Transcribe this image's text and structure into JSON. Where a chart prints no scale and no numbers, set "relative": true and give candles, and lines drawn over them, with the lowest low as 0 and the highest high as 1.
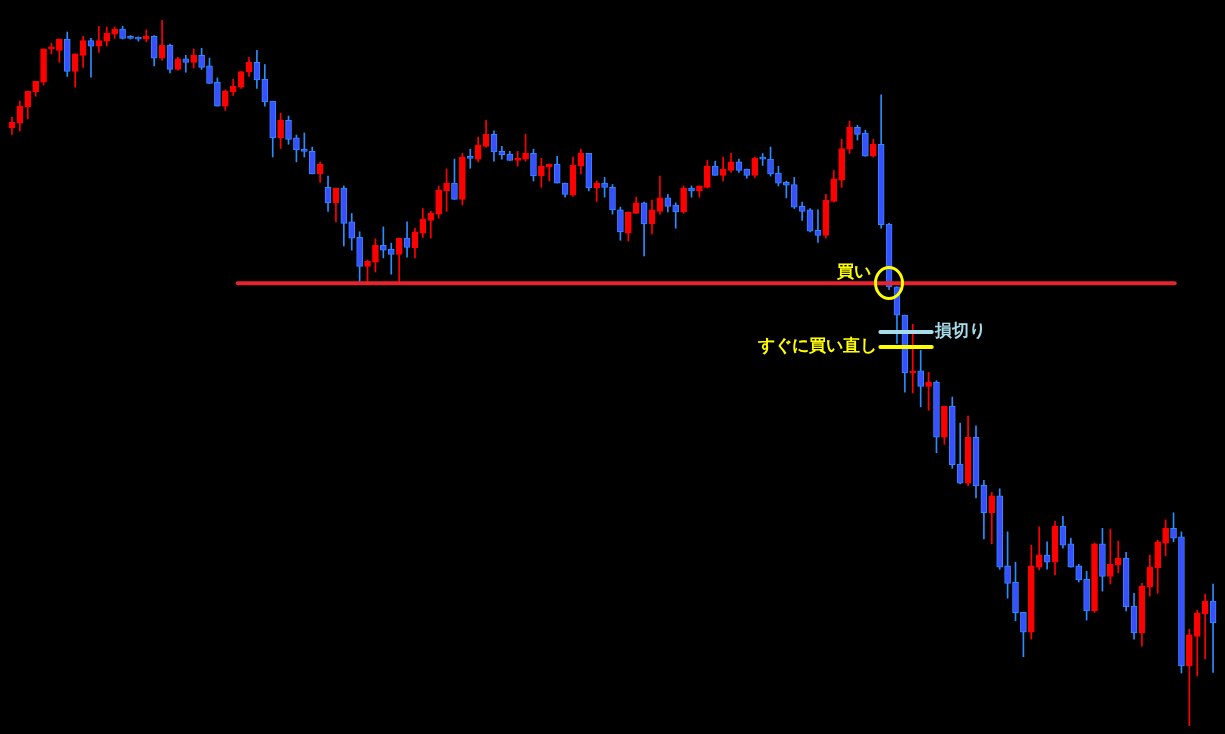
{
  "chart_data": {
    "type": "candlestick",
    "relative": true,
    "categories": [
      null,
      null,
      null,
      null,
      null,
      null,
      null,
      null,
      null,
      null,
      null,
      null,
      null,
      null,
      null,
      null,
      null,
      null,
      null,
      null,
      null,
      null,
      null,
      null,
      null,
      null,
      null,
      null,
      null,
      null,
      null,
      null,
      null,
      null,
      null,
      null,
      null,
      null,
      null,
      null,
      null,
      null,
      null,
      null,
      null,
      null,
      null,
      null,
      null,
      null,
      null,
      null,
      null,
      null,
      null,
      null,
      null,
      null,
      null,
      null,
      null,
      null,
      null,
      null,
      null,
      null,
      null,
      null,
      null,
      null,
      null,
      null,
      null,
      null,
      null,
      null,
      null,
      null,
      null,
      null,
      null,
      null,
      null,
      null,
      null,
      null,
      null,
      null,
      null,
      null,
      null,
      null,
      null,
      null,
      null,
      null,
      null,
      null,
      null,
      null,
      null,
      null,
      null,
      null,
      null,
      null,
      null,
      null,
      null,
      null,
      null,
      null,
      null,
      null,
      null,
      null,
      null,
      null,
      null,
      null,
      null,
      null,
      null,
      null,
      null,
      null,
      null,
      null,
      null,
      null,
      null,
      null,
      null,
      null,
      null,
      null,
      null,
      null,
      null,
      null,
      null,
      null,
      null,
      null,
      null,
      null,
      null,
      null,
      null,
      null,
      null,
      null,
      null
    ],
    "ohlc": [
      [
        0.847,
        0.862,
        0.838,
        0.855
      ],
      [
        0.854,
        0.885,
        0.843,
        0.878
      ],
      [
        0.877,
        0.899,
        0.86,
        0.899
      ],
      [
        0.898,
        0.913,
        0.892,
        0.913
      ],
      [
        0.912,
        0.959,
        0.908,
        0.959
      ],
      [
        0.959,
        0.967,
        0.952,
        0.959
      ],
      [
        0.957,
        0.973,
        0.94,
        0.973
      ],
      [
        0.973,
        0.983,
        0.92,
        0.927
      ],
      [
        0.927,
        0.952,
        0.905,
        0.952
      ],
      [
        0.95,
        0.977,
        0.933,
        0.971
      ],
      [
        0.971,
        0.974,
        0.919,
        0.963
      ],
      [
        0.963,
        0.991,
        0.954,
        0.971
      ],
      [
        0.97,
        0.99,
        0.963,
        0.981
      ],
      [
        0.98,
        0.99,
        0.974,
        0.987
      ],
      [
        0.987,
        0.991,
        0.973,
        0.974
      ],
      [
        0.976,
        0.978,
        0.973,
        0.974
      ],
      [
        0.974,
        0.976,
        0.97,
        0.973
      ],
      [
        0.973,
        0.986,
        0.969,
        0.977
      ],
      [
        0.977,
        0.978,
        0.935,
        0.946
      ],
      [
        0.946,
        1,
        0.943,
        0.964
      ],
      [
        0.964,
        0.966,
        0.925,
        0.93
      ],
      [
        0.93,
        0.947,
        0.929,
        0.945
      ],
      [
        0.945,
        0.95,
        0.926,
        0.94
      ],
      [
        0.94,
        0.959,
        0.932,
        0.95
      ],
      [
        0.95,
        0.96,
        0.93,
        0.933
      ],
      [
        0.935,
        0.946,
        0.91,
        0.91
      ],
      [
        0.912,
        0.918,
        0.878,
        0.878
      ],
      [
        0.878,
        0.901,
        0.872,
        0.899
      ],
      [
        0.898,
        0.916,
        0.893,
        0.906
      ],
      [
        0.905,
        0.927,
        0.903,
        0.927
      ],
      [
        0.926,
        0.947,
        0.92,
        0.94
      ],
      [
        0.94,
        0.957,
        0.903,
        0.915
      ],
      [
        0.916,
        0.937,
        0.878,
        0.884
      ],
      [
        0.885,
        0.885,
        0.806,
        0.833
      ],
      [
        0.833,
        0.868,
        0.818,
        0.858
      ],
      [
        0.858,
        0.864,
        0.824,
        0.831
      ],
      [
        0.833,
        0.837,
        0.799,
        0.816
      ],
      [
        0.817,
        0.84,
        0.806,
        0.814
      ],
      [
        0.814,
        0.82,
        0.782,
        0.782
      ],
      [
        0.782,
        0.799,
        0.77,
        0.796
      ],
      [
        0.763,
        0.779,
        0.729,
        0.741
      ],
      [
        0.741,
        0.762,
        0.714,
        0.762
      ],
      [
        0.762,
        0.765,
        0.68,
        0.712
      ],
      [
        0.714,
        0.726,
        0.674,
        0.691
      ],
      [
        0.692,
        0.7,
        0.629,
        0.651
      ],
      [
        0.651,
        0.66,
        0.627,
        0.658
      ],
      [
        0.657,
        0.69,
        0.643,
        0.681
      ],
      [
        0.681,
        0.707,
        0.663,
        0.674
      ],
      [
        0.675,
        0.684,
        0.64,
        0.668
      ],
      [
        0.668,
        0.691,
        0.629,
        0.691
      ],
      [
        0.691,
        0.714,
        0.664,
        0.678
      ],
      [
        0.677,
        0.705,
        0.663,
        0.7
      ],
      [
        0.698,
        0.733,
        0.692,
        0.718
      ],
      [
        0.716,
        0.729,
        0.691,
        0.726
      ],
      [
        0.725,
        0.765,
        0.719,
        0.759
      ],
      [
        0.758,
        0.789,
        0.729,
        0.769
      ],
      [
        0.769,
        0.803,
        0.746,
        0.746
      ],
      [
        0.746,
        0.811,
        0.738,
        0.806
      ],
      [
        0.806,
        0.817,
        0.79,
        0.804
      ],
      [
        0.803,
        0.834,
        0.799,
        0.823
      ],
      [
        0.821,
        0.858,
        0.82,
        0.838
      ],
      [
        0.838,
        0.843,
        0.8,
        0.813
      ],
      [
        0.814,
        0.821,
        0.803,
        0.809
      ],
      [
        0.81,
        0.814,
        0.801,
        0.801
      ],
      [
        0.801,
        0.814,
        0.793,
        0.804
      ],
      [
        0.803,
        0.838,
        0.8,
        0.811
      ],
      [
        0.811,
        0.817,
        0.772,
        0.779
      ],
      [
        0.779,
        0.804,
        0.763,
        0.793
      ],
      [
        0.792,
        0.796,
        0.772,
        0.796
      ],
      [
        0.796,
        0.807,
        0.769,
        0.769
      ],
      [
        0.769,
        0.769,
        0.749,
        0.753
      ],
      [
        0.752,
        0.806,
        0.75,
        0.794
      ],
      [
        0.793,
        0.817,
        0.782,
        0.811
      ],
      [
        0.811,
        0.811,
        0.758,
        0.762
      ],
      [
        0.762,
        0.772,
        0.743,
        0.769
      ],
      [
        0.769,
        0.777,
        0.749,
        0.763
      ],
      [
        0.763,
        0.767,
        0.725,
        0.731
      ],
      [
        0.731,
        0.735,
        0.688,
        0.7
      ],
      [
        0.698,
        0.728,
        0.687,
        0.728
      ],
      [
        0.726,
        0.749,
        0.726,
        0.741
      ],
      [
        0.741,
        0.742,
        0.666,
        0.711
      ],
      [
        0.711,
        0.745,
        0.697,
        0.731
      ],
      [
        0.729,
        0.779,
        0.725,
        0.748
      ],
      [
        0.748,
        0.753,
        0.728,
        0.736
      ],
      [
        0.738,
        0.741,
        0.705,
        0.728
      ],
      [
        0.728,
        0.765,
        0.726,
        0.762
      ],
      [
        0.762,
        0.765,
        0.749,
        0.758
      ],
      [
        0.758,
        0.765,
        0.749,
        0.765
      ],
      [
        0.763,
        0.801,
        0.762,
        0.793
      ],
      [
        0.793,
        0.8,
        0.78,
        0.78
      ],
      [
        0.78,
        0.806,
        0.772,
        0.789
      ],
      [
        0.787,
        0.811,
        0.784,
        0.799
      ],
      [
        0.799,
        0.803,
        0.784,
        0.787
      ],
      [
        0.789,
        0.789,
        0.776,
        0.78
      ],
      [
        0.78,
        0.806,
        0.777,
        0.804
      ],
      [
        0.804,
        0.811,
        0.794,
        0.803
      ],
      [
        0.803,
        0.82,
        0.779,
        0.782
      ],
      [
        0.783,
        0.793,
        0.765,
        0.769
      ],
      [
        0.77,
        0.772,
        0.748,
        0.766
      ],
      [
        0.767,
        0.777,
        0.733,
        0.735
      ],
      [
        0.736,
        0.742,
        0.716,
        0.729
      ],
      [
        0.731,
        0.733,
        0.7,
        0.701
      ],
      [
        0.702,
        0.731,
        0.685,
        0.695
      ],
      [
        0.695,
        0.753,
        0.691,
        0.745
      ],
      [
        0.743,
        0.787,
        0.742,
        0.775
      ],
      [
        0.773,
        0.831,
        0.763,
        0.818
      ],
      [
        0.817,
        0.857,
        0.811,
        0.848
      ],
      [
        0.848,
        0.851,
        0.83,
        0.838
      ],
      [
        0.84,
        0.844,
        0.807,
        0.807
      ],
      [
        0.807,
        0.831,
        0.806,
        0.824
      ],
      [
        0.824,
        0.894,
        0.705,
        0.71
      ],
      [
        0.711,
        0.712,
        0.618,
        0.622
      ],
      [
        0.622,
        0.622,
        0.542,
        0.582
      ],
      [
        0.582,
        0.582,
        0.473,
        0.5
      ],
      [
        0.5,
        0.569,
        0.472,
        0.501
      ],
      [
        0.503,
        0.532,
        0.452,
        0.481
      ],
      [
        0.481,
        0.501,
        0.447,
        0.487
      ],
      [
        0.487,
        0.489,
        0.387,
        0.409
      ],
      [
        0.409,
        0.453,
        0.399,
        0.453
      ],
      [
        0.453,
        0.466,
        0.365,
        0.37
      ],
      [
        0.371,
        0.429,
        0.343,
        0.344
      ],
      [
        0.344,
        0.439,
        0.34,
        0.409
      ],
      [
        0.409,
        0.425,
        0.323,
        0.34
      ],
      [
        0.341,
        0.348,
        0.265,
        0.302
      ],
      [
        0.302,
        0.331,
        0.258,
        0.326
      ],
      [
        0.326,
        0.336,
        0.222,
        0.225
      ],
      [
        0.227,
        0.275,
        0.181,
        0.202
      ],
      [
        0.204,
        0.232,
        0.149,
        0.16
      ],
      [
        0.161,
        0.161,
        0.098,
        0.133
      ],
      [
        0.133,
        0.256,
        0.123,
        0.227
      ],
      [
        0.225,
        0.282,
        0.221,
        0.242
      ],
      [
        0.242,
        0.261,
        0.222,
        0.232
      ],
      [
        0.232,
        0.29,
        0.214,
        0.283
      ],
      [
        0.283,
        0.297,
        0.252,
        0.256
      ],
      [
        0.258,
        0.266,
        0.225,
        0.225
      ],
      [
        0.227,
        0.229,
        0.204,
        0.207
      ],
      [
        0.208,
        0.219,
        0.15,
        0.163
      ],
      [
        0.163,
        0.259,
        0.161,
        0.258
      ],
      [
        0.258,
        0.28,
        0.191,
        0.212
      ],
      [
        0.212,
        0.279,
        0.201,
        0.229
      ],
      [
        0.228,
        0.262,
        0.217,
        0.238
      ],
      [
        0.238,
        0.246,
        0.163,
        0.169
      ],
      [
        0.17,
        0.188,
        0.123,
        0.132
      ],
      [
        0.132,
        0.202,
        0.113,
        0.198
      ],
      [
        0.197,
        0.242,
        0.184,
        0.225
      ],
      [
        0.224,
        0.263,
        0.188,
        0.261
      ],
      [
        0.259,
        0.292,
        0.241,
        0.28
      ],
      [
        0.28,
        0.302,
        0.261,
        0.266
      ],
      [
        0.268,
        0.275,
        0.075,
        0.085
      ],
      [
        0.085,
        0.137,
        0,
        0.129
      ],
      [
        0.127,
        0.164,
        0.071,
        0.16
      ],
      [
        0.159,
        0.187,
        0.095,
        0.177
      ],
      [
        0.177,
        0.201,
        0.076,
        0.146
      ]
    ],
    "ref_lines": [
      {
        "axis": "y",
        "value": 0.627,
        "label": "買い",
        "color": "#e8232b"
      },
      {
        "axis": "y",
        "value": 0.558,
        "label": "損切り",
        "color": "#a8dcea"
      },
      {
        "axis": "y",
        "value": 0.537,
        "label": "すぐに買い直し",
        "color": "#ffff00"
      }
    ]
  }
}
